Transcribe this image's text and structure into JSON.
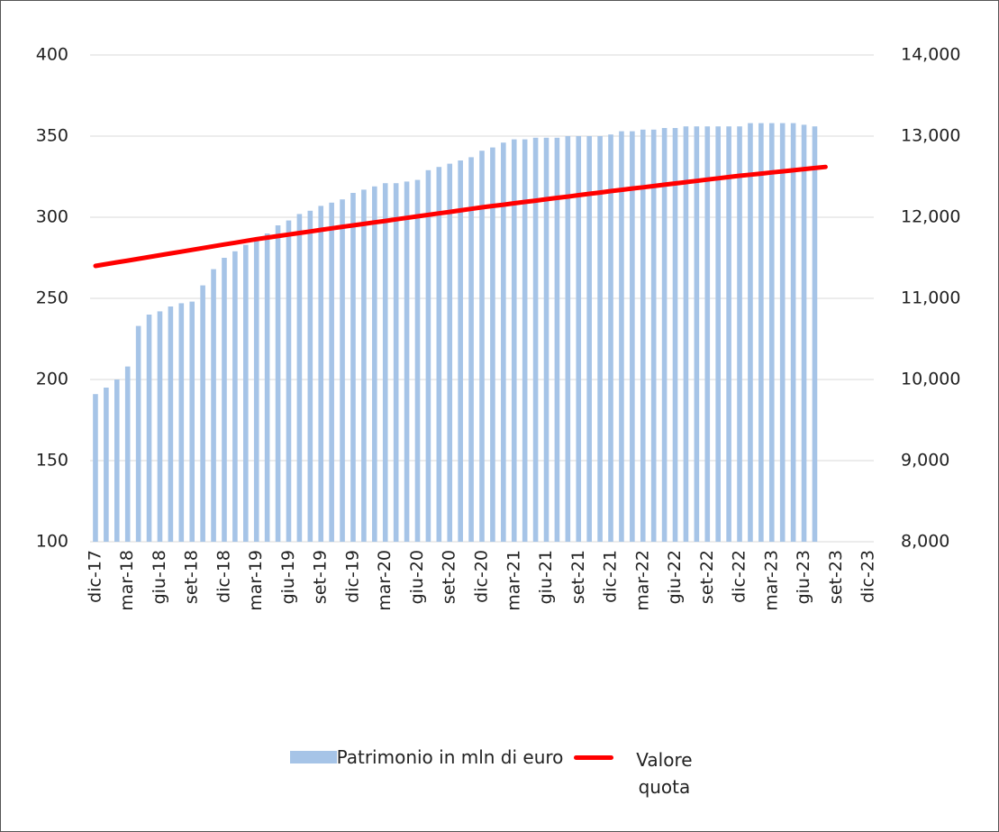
{
  "chart_data": {
    "type": "bar-line",
    "categories": [
      "dic-17",
      null,
      null,
      "mar-18",
      null,
      null,
      "giu-18",
      null,
      null,
      "set-18",
      null,
      null,
      "dic-18",
      null,
      null,
      "mar-19",
      null,
      null,
      "giu-19",
      null,
      null,
      "set-19",
      null,
      null,
      "dic-19",
      null,
      null,
      "mar-20",
      null,
      null,
      "giu-20",
      null,
      null,
      "set-20",
      null,
      null,
      "dic-20",
      null,
      null,
      "mar-21",
      null,
      null,
      "giu-21",
      null,
      null,
      "set-21",
      null,
      null,
      "dic-21",
      null,
      null,
      "mar-22",
      null,
      null,
      "giu-22",
      null,
      null,
      "set-22",
      null,
      null,
      "dic-22",
      null,
      null,
      "mar-23",
      null,
      null,
      "giu-23",
      null,
      null,
      "set-23",
      null,
      null,
      "dic-23"
    ],
    "series": [
      {
        "name": "Patrimonio in mln di euro",
        "type": "bar",
        "color": "#a6c4e7",
        "axis": "y",
        "values": [
          191,
          195,
          200,
          208,
          233,
          240,
          242,
          245,
          247,
          248,
          258,
          268,
          275,
          279,
          283,
          287,
          290,
          295,
          298,
          302,
          304,
          307,
          309,
          311,
          315,
          317,
          319,
          321,
          321,
          322,
          323,
          329,
          331,
          333,
          335,
          337,
          341,
          343,
          346,
          348,
          348,
          349,
          349,
          349,
          350,
          350,
          350,
          350,
          351,
          353,
          353,
          354,
          354,
          355,
          355,
          356,
          356,
          356,
          356,
          356,
          356,
          358,
          358,
          358,
          358,
          358,
          357,
          356,
          null,
          null,
          null,
          null,
          null
        ]
      },
      {
        "name": "Valore quota",
        "type": "line",
        "color": "#ff0000",
        "axis": "y2",
        "values": [
          11400,
          11422,
          11444,
          11466,
          11488,
          11510,
          11532,
          11554,
          11576,
          11598,
          11620,
          11642,
          11664,
          11686,
          11708,
          11730,
          11749,
          11768,
          11787,
          11806,
          11825,
          11844,
          11863,
          11882,
          11900,
          11918,
          11937,
          11955,
          11974,
          11992,
          12011,
          12029,
          12048,
          12066,
          12085,
          12103,
          12122,
          12139,
          12155,
          12172,
          12189,
          12205,
          12222,
          12239,
          12255,
          12272,
          12289,
          12305,
          12322,
          12338,
          12354,
          12369,
          12385,
          12401,
          12417,
          12432,
          12448,
          12464,
          12480,
          12495,
          12511,
          12525,
          12538,
          12552,
          12566,
          12579,
          12593,
          12607,
          12620,
          null,
          null,
          null,
          null
        ]
      }
    ],
    "ylim": [
      100,
      400
    ],
    "yticks": [
      100,
      150,
      200,
      250,
      300,
      350,
      400
    ],
    "y2lim": [
      8000,
      14000
    ],
    "y2ticks": [
      {
        "value": 8000,
        "label": "8,000"
      },
      {
        "value": 9000,
        "label": "9,000"
      },
      {
        "value": 10000,
        "label": "10,000"
      },
      {
        "value": 11000,
        "label": "11,000"
      },
      {
        "value": 12000,
        "label": "12,000"
      },
      {
        "value": 13000,
        "label": "13,000"
      },
      {
        "value": 14000,
        "label": "14,000"
      }
    ],
    "grid": true,
    "legend": "bottom"
  }
}
